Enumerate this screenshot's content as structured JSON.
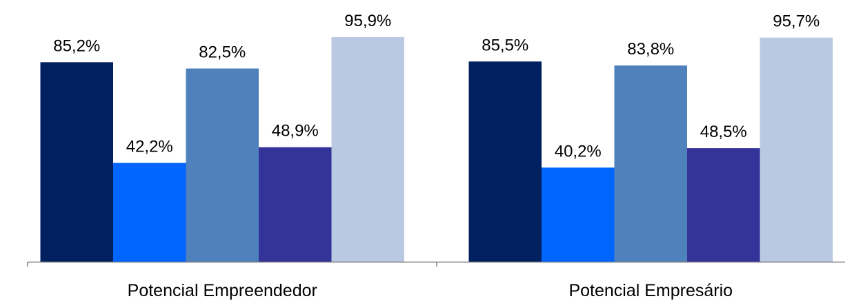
{
  "chart_data": {
    "type": "bar",
    "categories": [
      "Potencial Empreendedor",
      "Potencial Empresário"
    ],
    "series": [
      {
        "values": [
          85.2,
          85.5
        ],
        "labels": [
          "85,2%",
          "85,5%"
        ],
        "color": "#002060"
      },
      {
        "values": [
          42.2,
          40.2
        ],
        "labels": [
          "42,2%",
          "40,2%"
        ],
        "color": "#0066FF"
      },
      {
        "values": [
          82.5,
          83.8
        ],
        "labels": [
          "82,5%",
          "83,8%"
        ],
        "color": "#4F81BD"
      },
      {
        "values": [
          48.9,
          48.5
        ],
        "labels": [
          "48,9%",
          "48,5%"
        ],
        "color": "#333399"
      },
      {
        "values": [
          95.9,
          95.7
        ],
        "labels": [
          "95,9%",
          "95,7%"
        ],
        "color": "#B9C9E2"
      }
    ],
    "title": "",
    "xlabel": "",
    "ylabel": "",
    "ylim": [
      0,
      100
    ],
    "grid": false,
    "legend": "none",
    "axis_color": "#808080"
  }
}
